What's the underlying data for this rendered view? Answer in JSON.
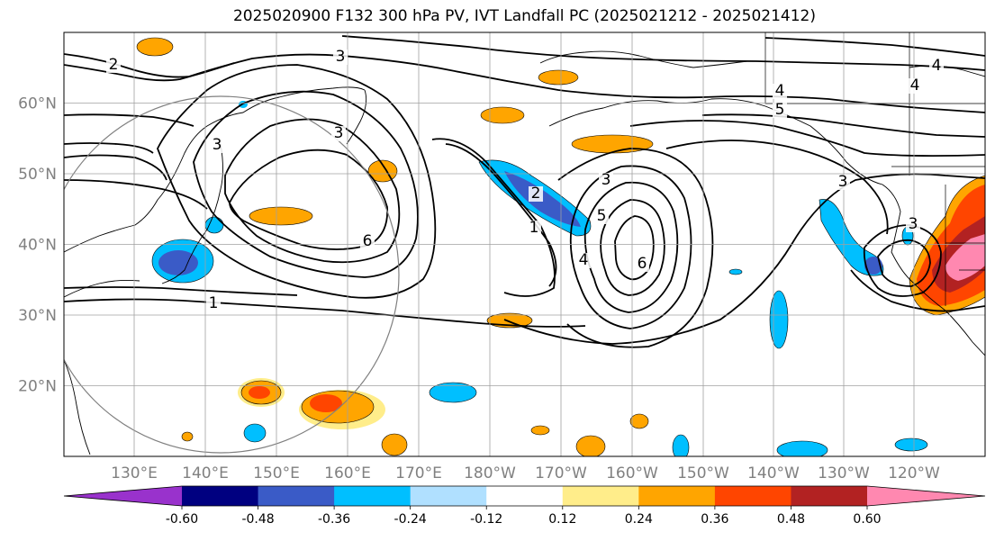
{
  "title": "2025020900 F132 300 hPa PV, IVT Landfall PC (2025021212 - 2025021412)",
  "map": {
    "projection": "PlateCarree",
    "lon_range": [
      120,
      -110
    ],
    "lat_range": [
      10,
      70
    ],
    "lat_ticks": [
      "20°N",
      "30°N",
      "40°N",
      "50°N",
      "60°N"
    ],
    "lon_ticks": [
      "130°E",
      "140°E",
      "150°E",
      "160°E",
      "170°E",
      "180°W",
      "170°W",
      "160°W",
      "150°W",
      "140°W",
      "130°W",
      "120°W"
    ],
    "grid": true
  },
  "contours": {
    "variable": "300 hPa PV",
    "color": "#000000",
    "labels": [
      "2",
      "3",
      "3",
      "4",
      "4",
      "5",
      "3",
      "6",
      "1",
      "2",
      "3",
      "5",
      "4",
      "6",
      "1",
      "3",
      "3",
      "4"
    ]
  },
  "fill": {
    "variable": "IVT Landfall PC",
    "levels": [
      "-0.60",
      "-0.48",
      "-0.36",
      "-0.24",
      "-0.12",
      "0.12",
      "0.24",
      "0.36",
      "0.48",
      "0.60"
    ],
    "colors": [
      "#9932CC",
      "#000080",
      "#3A5BC7",
      "#00BFFF",
      "#B0E0FF",
      "#FFFFFF",
      "#FFED8A",
      "#FFA500",
      "#FF4500",
      "#B22222",
      "#FF88B0"
    ]
  }
}
